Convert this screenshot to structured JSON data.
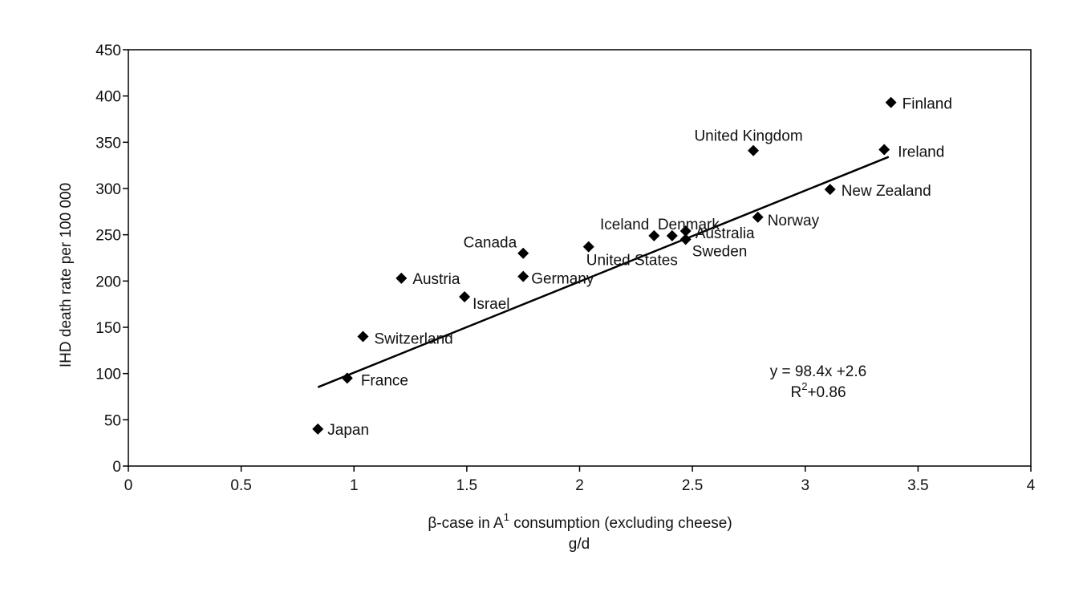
{
  "chart_data": {
    "type": "scatter",
    "title": "",
    "xlabel": "β-case in A",
    "xlabel_superscript": "1",
    "xlabel_rest": " consumption (excluding cheese)",
    "xlabel_line2": "g/d",
    "ylabel": "IHD death rate per 100 000",
    "xlim": [
      0,
      4
    ],
    "ylim": [
      0,
      450
    ],
    "x_ticks": [
      0,
      0.5,
      1,
      1.5,
      2,
      2.5,
      3,
      3.5,
      4
    ],
    "x_tick_labels": [
      "0",
      "0.5",
      "1",
      "1.5",
      "2",
      "2.5",
      "3",
      "3.5",
      "4"
    ],
    "y_ticks": [
      0,
      50,
      100,
      150,
      200,
      250,
      300,
      350,
      400,
      450
    ],
    "y_tick_labels": [
      "0",
      "50",
      "100",
      "150",
      "200",
      "250",
      "300",
      "350",
      "400",
      "450"
    ],
    "grid": false,
    "marker": "diamond",
    "points": [
      {
        "label": "Japan",
        "x": 0.84,
        "y": 40
      },
      {
        "label": "France",
        "x": 0.97,
        "y": 95
      },
      {
        "label": "Switzerland",
        "x": 1.04,
        "y": 140
      },
      {
        "label": "Austria",
        "x": 1.21,
        "y": 203
      },
      {
        "label": "Israel",
        "x": 1.49,
        "y": 183
      },
      {
        "label": "Canada",
        "x": 1.75,
        "y": 230
      },
      {
        "label": "Germany",
        "x": 1.75,
        "y": 205
      },
      {
        "label": "United States",
        "x": 2.04,
        "y": 237
      },
      {
        "label": "Iceland",
        "x": 2.33,
        "y": 249
      },
      {
        "label": "Denmark",
        "x": 2.41,
        "y": 249
      },
      {
        "label": "Australia",
        "x": 2.47,
        "y": 254
      },
      {
        "label": "Sweden",
        "x": 2.47,
        "y": 245
      },
      {
        "label": "United Kingdom",
        "x": 2.77,
        "y": 341
      },
      {
        "label": "Norway",
        "x": 2.79,
        "y": 269
      },
      {
        "label": "New Zealand",
        "x": 3.11,
        "y": 299
      },
      {
        "label": "Ireland",
        "x": 3.35,
        "y": 342
      },
      {
        "label": "Finland",
        "x": 3.38,
        "y": 393
      }
    ],
    "trendline": {
      "x_start": 0.84,
      "x_end": 3.37,
      "slope": 98.4,
      "intercept": 2.6
    },
    "equation_line1": "y = 98.4x +2.6",
    "equation_line2_prefix": "R",
    "equation_line2_sup": "2",
    "equation_line2_rest": "+0.86",
    "colors": {
      "marker": "#000000",
      "line": "#000000",
      "axis": "#000000"
    }
  }
}
